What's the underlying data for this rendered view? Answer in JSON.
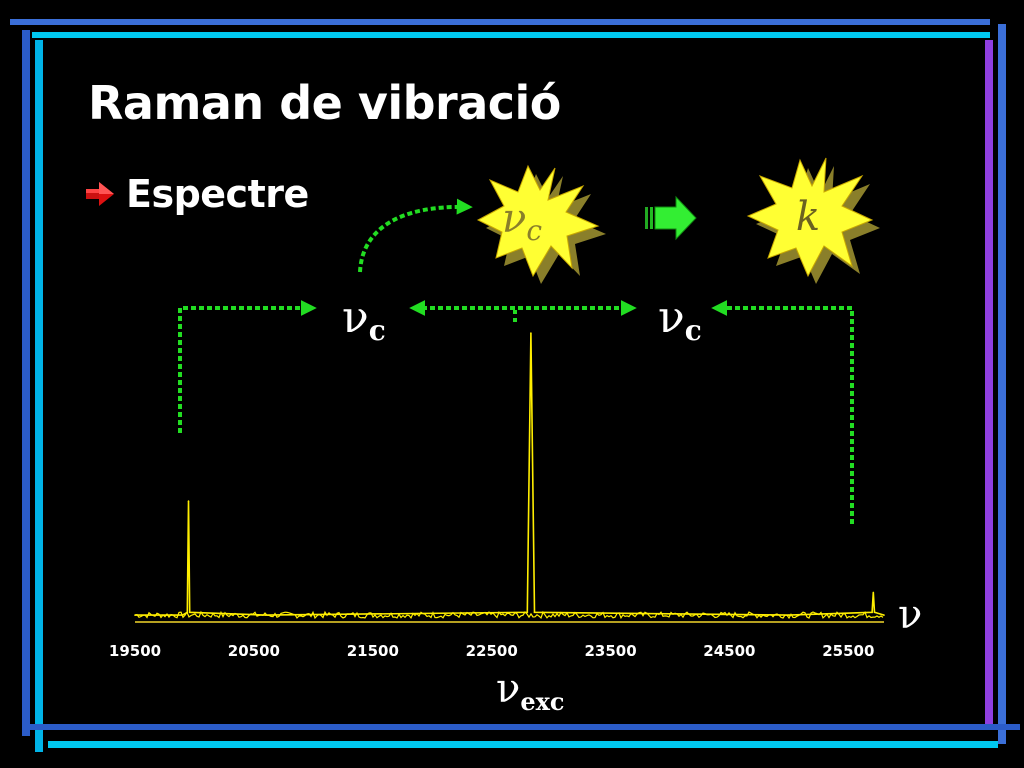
{
  "slide": {
    "title": "Raman de vibració",
    "bullet": "Espectre",
    "bullet_icon": "red-arrow-bullet-icon",
    "colors": {
      "background": "#000000",
      "title": "#ffffff",
      "spectrum": "#ffee00",
      "dashed": "#22dd22",
      "burst": "#ffff33",
      "burst_shadow": "#8a7f2a",
      "arrow": "#33ee33",
      "frame_blue": "#3b6fd8",
      "frame_cyan": "#00c8f0",
      "frame_purple": "#8f3fe0"
    }
  },
  "annotations": {
    "nu_left": {
      "symbol": "ν",
      "subscript": "c"
    },
    "nu_right": {
      "symbol": "ν",
      "subscript": "c"
    },
    "burst_left": {
      "symbol": "ν",
      "subscript": "c"
    },
    "burst_right": {
      "symbol": "k"
    },
    "x_symbol": "ν",
    "exc": {
      "symbol": "ν",
      "subscript": "exc"
    },
    "implies_icon": "green-block-arrow-icon"
  },
  "chart_data": {
    "type": "line",
    "title": "",
    "xlabel": "",
    "ylabel": "",
    "x_tick_labels": [
      "19500",
      "20500",
      "21500",
      "22500",
      "23500",
      "24500",
      "25500"
    ],
    "xlim": [
      19500,
      25800
    ],
    "ylim": [
      0,
      1
    ],
    "grid": false,
    "series": [
      {
        "points": [
          {
            "x": 19500,
            "y": 0.01
          },
          {
            "x": 19900,
            "y": 0.01
          },
          {
            "x": 19940,
            "y": 0.02
          },
          {
            "x": 19950,
            "y": 0.41
          },
          {
            "x": 19960,
            "y": 0.02
          },
          {
            "x": 20600,
            "y": 0.01
          },
          {
            "x": 22800,
            "y": 0.02
          },
          {
            "x": 22830,
            "y": 1.0
          },
          {
            "x": 22860,
            "y": 0.02
          },
          {
            "x": 25000,
            "y": 0.01
          },
          {
            "x": 25700,
            "y": 0.02
          },
          {
            "x": 25710,
            "y": 0.09
          },
          {
            "x": 25720,
            "y": 0.02
          },
          {
            "x": 25800,
            "y": 0.01
          }
        ]
      }
    ]
  }
}
